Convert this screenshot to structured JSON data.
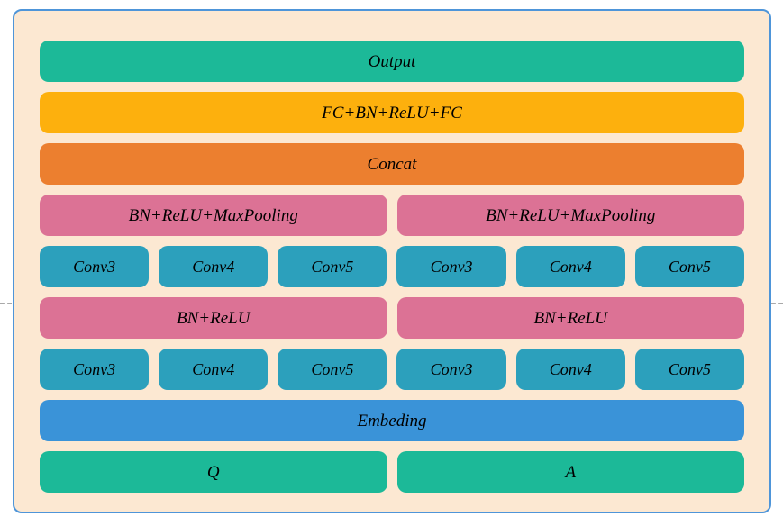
{
  "diagram": {
    "output_label": "Output",
    "fc_label": "FC+BN+ReLU+FC",
    "concat_label": "Concat",
    "maxpool_label": "BN+ReLU+MaxPooling",
    "bn_relu_label": "BN+ReLU",
    "conv3_label": "Conv3",
    "conv4_label": "Conv4",
    "conv5_label": "Conv5",
    "embedding_label": "Embeding",
    "q_label": "Q",
    "a_label": "A"
  },
  "colors": {
    "panel_background": "#fce8d2",
    "panel_border": "#4e95d9",
    "output_green": "#1cb998",
    "fc_amber": "#fdb00d",
    "concat_orange": "#ec7f2f",
    "pooling_pink": "#dc7295",
    "conv_teal": "#2ca0bc",
    "embedding_blue": "#3a93d8",
    "label_text": "#000000",
    "guide_gray": "#a9a9a9"
  }
}
